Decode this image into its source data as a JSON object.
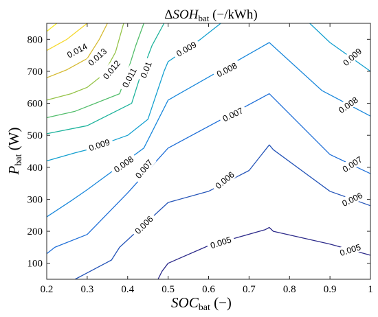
{
  "chart_data": {
    "type": "contour",
    "title": {
      "prefix": "Δ",
      "main": "SOH",
      "sub": "bat",
      "suffix": " (−/kWh)"
    },
    "xlabel": {
      "main": "SOC",
      "sub": "bat",
      "suffix": " (−)"
    },
    "ylabel": {
      "main": "P",
      "sub": "bat",
      "suffix": " (W)"
    },
    "xlim": [
      0.2,
      1.0
    ],
    "ylim": [
      50,
      850
    ],
    "xticks": [
      "0.2",
      "0.3",
      "0.4",
      "0.5",
      "0.6",
      "0.7",
      "0.8",
      "0.9",
      "1"
    ],
    "yticks": [
      "100",
      "200",
      "300",
      "400",
      "500",
      "600",
      "700",
      "800"
    ],
    "levels": [
      {
        "label": "0.005",
        "color": "#2c2a8a",
        "segments": [
          [
            [
              0.475,
              50
            ],
            [
              0.485,
              75
            ],
            [
              0.5,
              100
            ],
            [
              0.6,
              155
            ],
            [
              0.74,
              205
            ],
            [
              0.75,
              212
            ],
            [
              0.76,
              200
            ],
            [
              0.9,
              160
            ],
            [
              1.0,
              125
            ]
          ]
        ]
      },
      {
        "label": "0.006",
        "color": "#2454b8",
        "segments": [
          [
            [
              0.27,
              50
            ],
            [
              0.3,
              70
            ],
            [
              0.36,
              110
            ],
            [
              0.38,
              150
            ],
            [
              0.5,
              290
            ],
            [
              0.6,
              325
            ],
            [
              0.7,
              390
            ],
            [
              0.75,
              470
            ],
            [
              0.76,
              455
            ],
            [
              0.9,
              325
            ],
            [
              1.0,
              280
            ]
          ]
        ]
      },
      {
        "label": "0.007",
        "color": "#1f6fd8",
        "segments": [
          [
            [
              0.2,
              130
            ],
            [
              0.22,
              150
            ],
            [
              0.3,
              190
            ],
            [
              0.4,
              320
            ],
            [
              0.5,
              460
            ],
            [
              0.75,
              630
            ],
            [
              0.9,
              440
            ],
            [
              1.0,
              380
            ]
          ]
        ]
      },
      {
        "label": "0.008",
        "color": "#1a88dc",
        "segments": [
          [
            [
              0.2,
              245
            ],
            [
              0.26,
              295
            ],
            [
              0.3,
              330
            ],
            [
              0.44,
              460
            ],
            [
              0.5,
              610
            ],
            [
              0.75,
              790
            ],
            [
              0.88,
              640
            ],
            [
              1.0,
              560
            ]
          ]
        ]
      },
      {
        "label": "0.009",
        "color": "#14a0d0",
        "segments": [
          [
            [
              0.2,
              420
            ],
            [
              0.27,
              445
            ],
            [
              0.3,
              455
            ],
            [
              0.4,
              500
            ],
            [
              0.45,
              550
            ],
            [
              0.49,
              700
            ],
            [
              0.5,
              730
            ],
            [
              0.58,
              800
            ],
            [
              0.63,
              850
            ]
          ],
          [
            [
              0.85,
              850
            ],
            [
              0.9,
              790
            ],
            [
              1.0,
              700
            ]
          ]
        ]
      },
      {
        "label": "0.01",
        "color": "#1db39c",
        "segments": [
          [
            [
              0.2,
              505
            ],
            [
              0.3,
              530
            ],
            [
              0.41,
              600
            ],
            [
              0.43,
              680
            ],
            [
              0.46,
              780
            ],
            [
              0.49,
              850
            ]
          ]
        ]
      },
      {
        "label": "0.011",
        "color": "#53be6c",
        "segments": [
          [
            [
              0.2,
              555
            ],
            [
              0.27,
              575
            ],
            [
              0.32,
              600
            ],
            [
              0.38,
              630
            ],
            [
              0.4,
              700
            ],
            [
              0.42,
              780
            ],
            [
              0.44,
              850
            ]
          ]
        ]
      },
      {
        "label": "0.012",
        "color": "#95c347",
        "segments": [
          [
            [
              0.2,
              610
            ],
            [
              0.26,
              630
            ],
            [
              0.3,
              650
            ],
            [
              0.34,
              690
            ],
            [
              0.37,
              760
            ],
            [
              0.39,
              850
            ]
          ]
        ]
      },
      {
        "label": "0.013",
        "color": "#d5ba30",
        "segments": [
          [
            [
              0.2,
              680
            ],
            [
              0.25,
              705
            ],
            [
              0.3,
              740
            ],
            [
              0.33,
              800
            ],
            [
              0.35,
              850
            ]
          ]
        ]
      },
      {
        "label": "0.014",
        "color": "#f5d82c",
        "segments": [
          [
            [
              0.2,
              765
            ],
            [
              0.25,
              800
            ],
            [
              0.28,
              830
            ],
            [
              0.3,
              850
            ]
          ]
        ]
      },
      {
        "label": "",
        "color": "#f9ec20",
        "segments": [
          [
            [
              0.2,
              825
            ],
            [
              0.21,
              835
            ],
            [
              0.225,
              850
            ]
          ]
        ]
      }
    ],
    "contour_labels": [
      {
        "text": "0.014",
        "x": 0.275,
        "y": 765,
        "angle": -28
      },
      {
        "text": "0.013",
        "x": 0.325,
        "y": 745,
        "angle": -42
      },
      {
        "text": "0.012",
        "x": 0.36,
        "y": 705,
        "angle": -50
      },
      {
        "text": "0.011",
        "x": 0.404,
        "y": 680,
        "angle": -62
      },
      {
        "text": "0.01",
        "x": 0.445,
        "y": 705,
        "angle": -68
      },
      {
        "text": "0.009",
        "x": 0.33,
        "y": 470,
        "angle": -18
      },
      {
        "text": "0.009",
        "x": 0.545,
        "y": 770,
        "angle": -30
      },
      {
        "text": "0.009",
        "x": 0.955,
        "y": 745,
        "angle": -42
      },
      {
        "text": "0.008",
        "x": 0.39,
        "y": 410,
        "angle": -35
      },
      {
        "text": "0.008",
        "x": 0.645,
        "y": 705,
        "angle": -27
      },
      {
        "text": "0.008",
        "x": 0.945,
        "y": 595,
        "angle": -35
      },
      {
        "text": "0.007",
        "x": 0.44,
        "y": 395,
        "angle": -50
      },
      {
        "text": "0.007",
        "x": 0.66,
        "y": 565,
        "angle": -25
      },
      {
        "text": "0.007",
        "x": 0.955,
        "y": 410,
        "angle": -33
      },
      {
        "text": "0.006",
        "x": 0.44,
        "y": 220,
        "angle": -45
      },
      {
        "text": "0.006",
        "x": 0.64,
        "y": 360,
        "angle": -40
      },
      {
        "text": "0.006",
        "x": 0.955,
        "y": 300,
        "angle": -26
      },
      {
        "text": "0.005",
        "x": 0.63,
        "y": 165,
        "angle": -18
      },
      {
        "text": "0.005",
        "x": 0.95,
        "y": 142,
        "angle": -18
      }
    ]
  }
}
